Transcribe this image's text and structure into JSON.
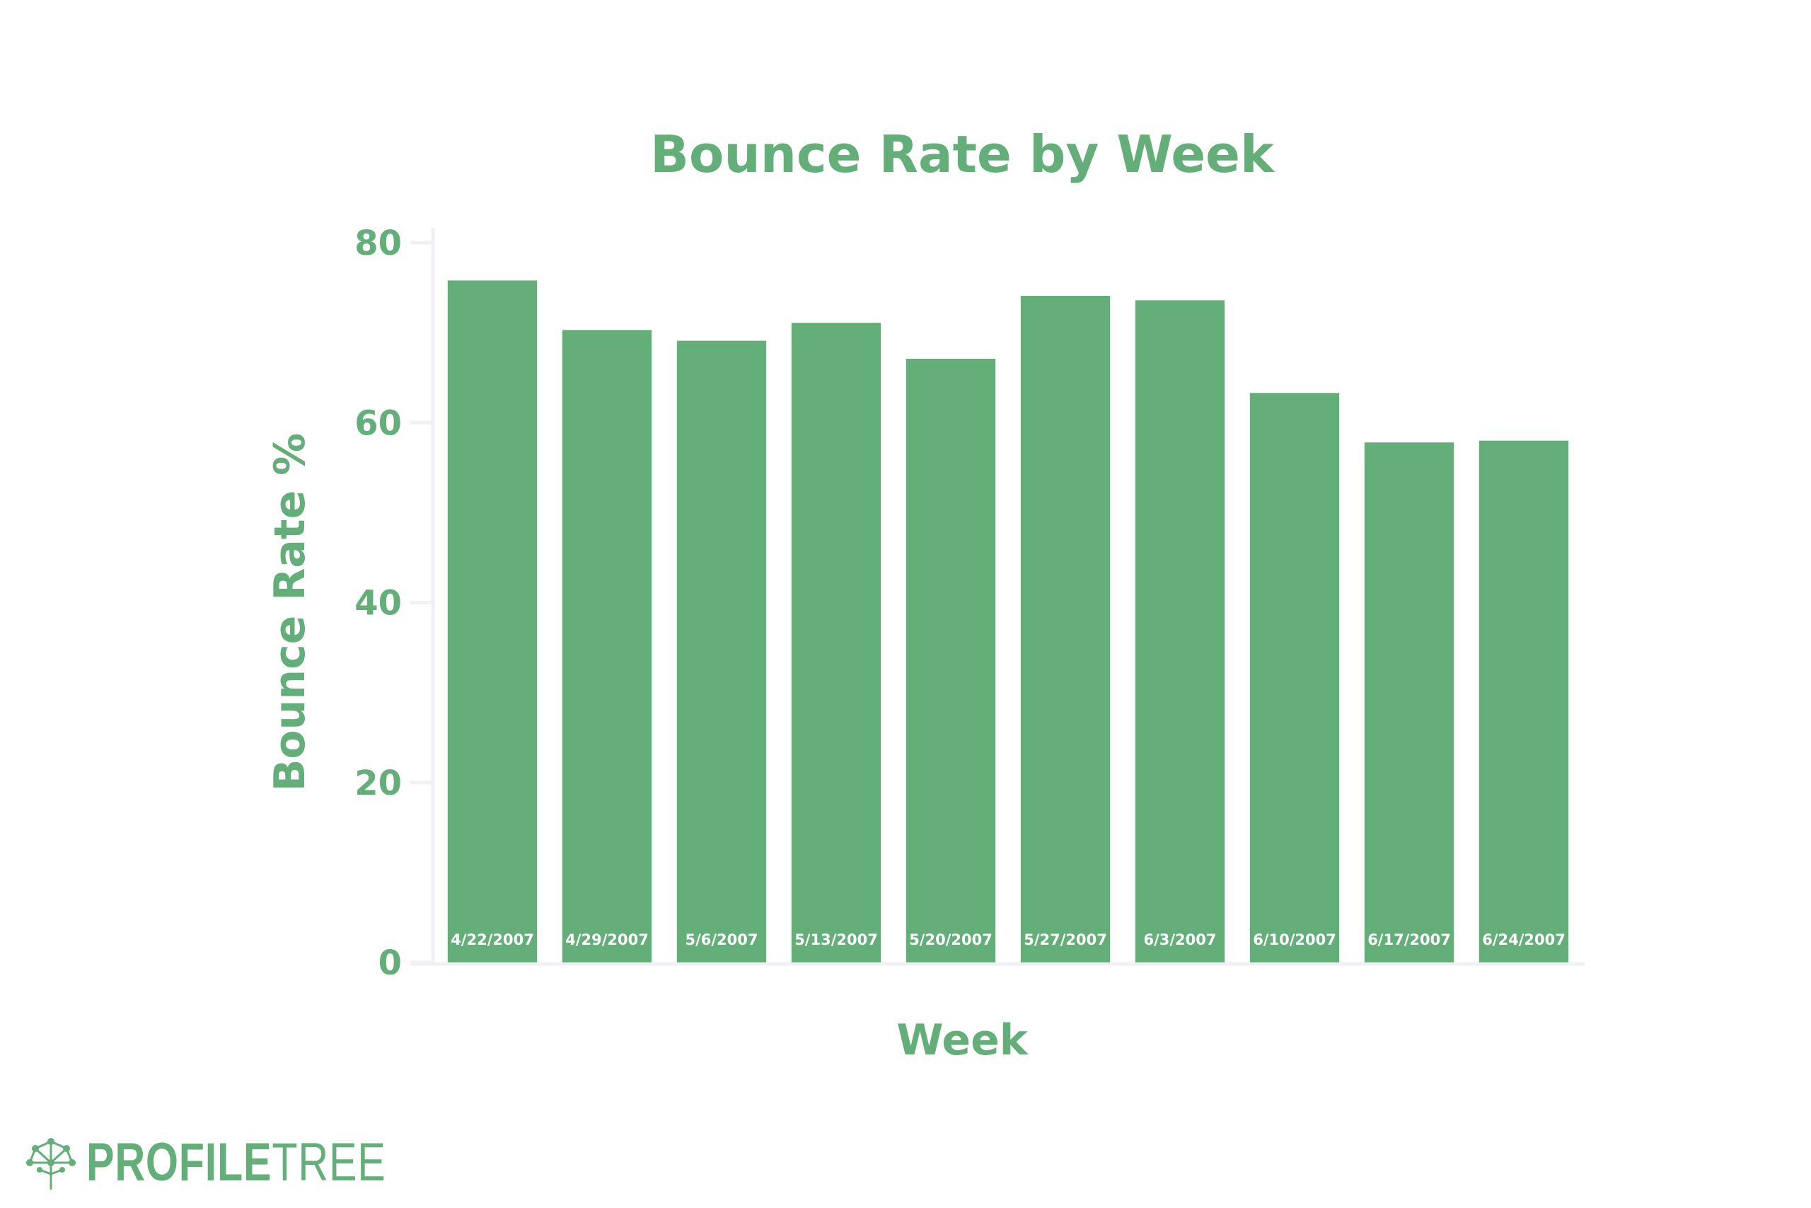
{
  "colors": {
    "primary": "#64AE79",
    "axis": "#F1F0F4",
    "bar_label": "#ffffff",
    "background": "#ffffff"
  },
  "chart_data": {
    "type": "bar",
    "title": "Bounce Rate by Week",
    "xlabel": "Week",
    "ylabel": "Bounce Rate %",
    "categories": [
      "4/22/2007",
      "4/29/2007",
      "5/6/2007",
      "5/13/2007",
      "5/20/2007",
      "5/27/2007",
      "6/3/2007",
      "6/10/2007",
      "6/17/2007",
      "6/24/2007"
    ],
    "values": [
      75.8,
      70.3,
      69.1,
      71.1,
      67.1,
      74.1,
      73.6,
      63.3,
      57.8,
      58.0
    ],
    "ylim": [
      0,
      80
    ],
    "yticks": [
      0,
      20,
      40,
      60,
      80
    ],
    "grid": false,
    "legend": "none"
  },
  "branding": {
    "logo_icon": "tree-network-icon",
    "logo_strong": "PROFILE",
    "logo_light": "TREE"
  }
}
